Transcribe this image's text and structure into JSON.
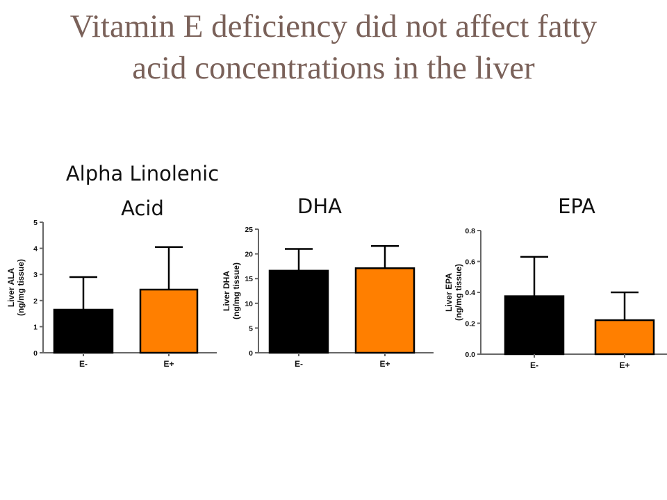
{
  "slide": {
    "title_line1": "Vitamin E deficiency did not affect fatty",
    "title_line2": "acid concentrations in the liver"
  },
  "colors": {
    "E-": "#000000",
    "E+": "#ff7f00",
    "title": "#7a6159"
  },
  "chart_data": [
    {
      "type": "bar",
      "title_line1": "Alpha Linolenic",
      "title_line2": "Acid",
      "categories": [
        "E-",
        "E+"
      ],
      "values": [
        1.65,
        2.42
      ],
      "error_upper": [
        2.9,
        4.05
      ],
      "ylabel_line1": "Liver ALA",
      "ylabel_line2": "(ng/mg tissue)",
      "ylim": [
        0,
        5
      ],
      "yticks": [
        0,
        1,
        2,
        3,
        4,
        5
      ],
      "ytick_labels": [
        "0",
        "1",
        "2",
        "3",
        "4",
        "5"
      ],
      "grid": false
    },
    {
      "type": "bar",
      "title_line1": "DHA",
      "title_line2": "",
      "categories": [
        "E-",
        "E+"
      ],
      "values": [
        16.6,
        17.1
      ],
      "error_upper": [
        21.0,
        21.6
      ],
      "ylabel_line1": "Liver DHA",
      "ylabel_line2": "(ng/mg tissue)",
      "ylim": [
        0,
        25
      ],
      "yticks": [
        0,
        5,
        10,
        15,
        20,
        25
      ],
      "ytick_labels": [
        "0",
        "5",
        "10",
        "15",
        "20",
        "25"
      ],
      "grid": false
    },
    {
      "type": "bar",
      "title_line1": "EPA",
      "title_line2": "",
      "categories": [
        "E-",
        "E+"
      ],
      "values": [
        0.375,
        0.22
      ],
      "error_upper": [
        0.63,
        0.4
      ],
      "ylabel_line1": "Liver EPA",
      "ylabel_line2": "(ng/mg tissue)",
      "ylim": [
        0,
        0.8
      ],
      "yticks": [
        0,
        0.2,
        0.4,
        0.6,
        0.8
      ],
      "ytick_labels": [
        "0.0",
        "0.2",
        "0.4",
        "0.6",
        "0.8"
      ],
      "grid": false
    }
  ]
}
